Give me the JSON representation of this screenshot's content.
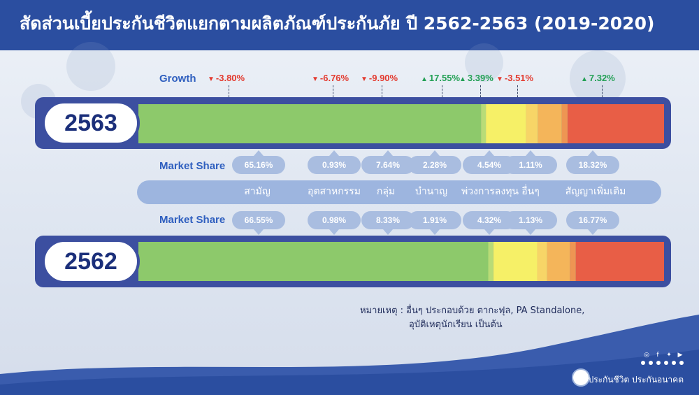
{
  "title": "สัดส่วนเบี้ยประกันชีวิตแยกตามผลิตภัณฑ์ประกันภัย ปี 2562-2563 (2019-2020)",
  "labels": {
    "growth": "Growth",
    "market_share": "Market Share"
  },
  "colors": {
    "header_bg": "#2b4ea0",
    "bar_frame": "#3c4fa0",
    "down": "#e33b30",
    "up": "#23a055"
  },
  "chart_data": {
    "type": "bar",
    "stacked": true,
    "orientation": "horizontal",
    "categories": [
      "สามัญ",
      "อุตสาหกรรม",
      "กลุ่ม",
      "บำนาญ",
      "พ่วงการลงทุน",
      "อื่นๆ",
      "สัญญาเพิ่มเติม"
    ],
    "segment_colors": [
      "#8dc96b",
      "#b9dc77",
      "#f6f067",
      "#f7d567",
      "#f4b55a",
      "#ee9553",
      "#e85e46"
    ],
    "series": [
      {
        "name": "2563",
        "values": [
          65.16,
          0.93,
          7.64,
          2.28,
          4.54,
          1.11,
          18.32
        ],
        "labels": [
          "65.16%",
          "0.93%",
          "7.64%",
          "2.28%",
          "4.54%",
          "1.11%",
          "18.32%"
        ]
      },
      {
        "name": "2562",
        "values": [
          66.55,
          0.98,
          8.33,
          1.91,
          4.32,
          1.13,
          16.77
        ],
        "labels": [
          "66.55%",
          "0.98%",
          "8.33%",
          "1.91%",
          "4.32%",
          "1.13%",
          "16.77%"
        ]
      }
    ],
    "growth": {
      "values": [
        -3.8,
        -6.76,
        -9.9,
        17.55,
        3.39,
        -3.51,
        7.32
      ],
      "labels": [
        "-3.80%",
        "-6.76%",
        "-9.90%",
        "17.55%",
        "3.39%",
        "-3.51%",
        "7.32%"
      ]
    }
  },
  "note": {
    "line1": "หมายเหตุ : อื่นๆ ประกอบด้วย ตากะฟุล, PA Standalone,",
    "line2": "อุบัติเหตุนักเรียน เป็นต้น"
  },
  "footer": {
    "brand": "ประกันชีวิต ประกันอนาคต",
    "social_icons": [
      "instagram-icon",
      "facebook-icon",
      "twitter-icon",
      "youtube-icon"
    ]
  }
}
